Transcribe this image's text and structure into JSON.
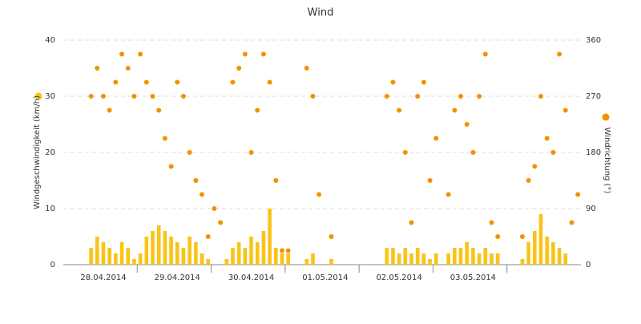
{
  "chart_data": {
    "type": "combo",
    "title": "Wind",
    "categories": [
      null,
      null,
      null,
      null,
      null,
      null,
      "28.04.2014",
      null,
      null,
      null,
      null,
      null,
      null,
      null,
      null,
      null,
      null,
      null,
      "29.04.2014",
      null,
      null,
      null,
      null,
      null,
      null,
      null,
      null,
      null,
      null,
      null,
      "30.04.2014",
      null,
      null,
      null,
      null,
      null,
      null,
      null,
      null,
      null,
      null,
      null,
      "01.05.2014",
      null,
      null,
      null,
      null,
      null,
      null,
      null,
      null,
      null,
      null,
      null,
      "02.05.2014",
      null,
      null,
      null,
      null,
      null,
      null,
      null,
      null,
      null,
      null,
      null,
      "03.05.2014",
      null,
      null,
      null,
      null,
      null,
      null,
      null,
      null,
      null,
      null,
      null,
      null,
      null,
      null,
      null,
      null,
      null
    ],
    "series": [
      {
        "name": "Windgeschwindigkeit (km/h)",
        "type": "bar",
        "color": "#f9c418",
        "values": [
          null,
          null,
          null,
          null,
          3,
          5,
          4,
          3,
          2,
          4,
          3,
          1,
          2,
          5,
          6,
          7,
          6,
          5,
          4,
          3,
          5,
          4,
          2,
          1,
          0,
          null,
          1,
          3,
          4,
          3,
          5,
          4,
          6,
          10,
          3,
          2,
          2,
          null,
          null,
          1,
          2,
          null,
          null,
          1,
          null,
          null,
          null,
          null,
          null,
          null,
          null,
          null,
          3,
          3,
          2,
          3,
          2,
          3,
          2,
          1,
          2,
          null,
          2,
          3,
          3,
          4,
          3,
          2,
          3,
          2,
          2,
          null,
          null,
          null,
          1,
          4,
          6,
          9,
          5,
          4,
          3,
          2,
          null,
          null
        ]
      },
      {
        "name": "Windrichtung (°)",
        "type": "scatter",
        "axis": "y2",
        "color": "#f39200",
        "values": [
          null,
          null,
          null,
          null,
          270,
          315,
          270,
          247.5,
          292.5,
          337.5,
          315,
          270,
          337.5,
          292.5,
          270,
          247.5,
          202.5,
          157.5,
          292.5,
          270,
          180,
          135,
          112.5,
          45,
          90,
          67.5,
          null,
          292.5,
          315,
          337.5,
          180,
          247.5,
          337.5,
          292.5,
          135,
          22.5,
          22.5,
          null,
          null,
          315,
          270,
          112.5,
          null,
          45,
          null,
          null,
          null,
          null,
          null,
          null,
          null,
          null,
          270,
          292.5,
          247.5,
          180,
          67.5,
          270,
          292.5,
          135,
          202.5,
          null,
          112.5,
          247.5,
          270,
          225,
          180,
          270,
          337.5,
          67.5,
          45,
          null,
          null,
          null,
          45,
          135,
          157.5,
          270,
          202.5,
          180,
          337.5,
          247.5,
          67.5,
          112.5
        ]
      }
    ],
    "ylim": [
      0,
      40
    ],
    "yticks": [
      0,
      10,
      20,
      30,
      40
    ],
    "y2lim": [
      0,
      360
    ],
    "y2ticks": [
      0,
      90,
      180,
      270,
      360
    ],
    "grid": true
  }
}
